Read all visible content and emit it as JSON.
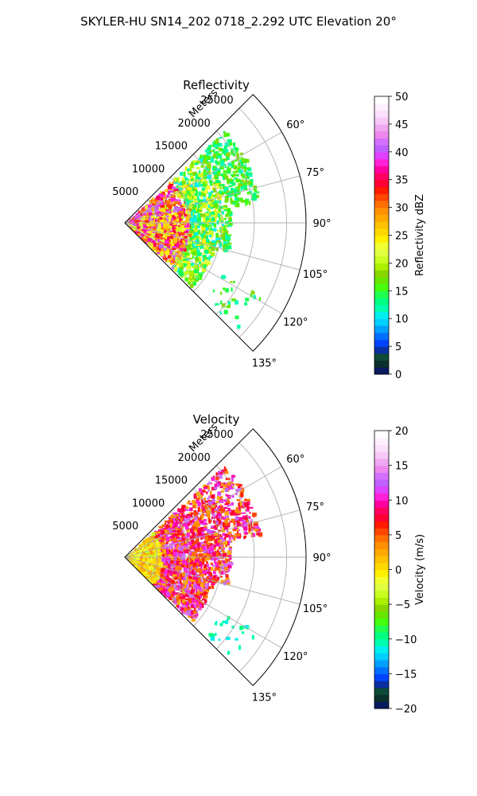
{
  "figure": {
    "title": "SKYLER-HU  SN14_202  0718_2.292 UTC Elevation 20°"
  },
  "chart_data": [
    {
      "type": "heatmap",
      "subtype": "polar-sector radar PPI",
      "title": "Reflectivity",
      "radial_label": "Meters",
      "radial_range": [
        0,
        28000
      ],
      "radial_ticks": [
        5000,
        10000,
        15000,
        20000,
        25000
      ],
      "radial_tick_labels": [
        "5000",
        "10000",
        "15000",
        "20000",
        "25000"
      ],
      "azimuth_range_deg": [
        45,
        135
      ],
      "azimuth_ticks_deg": [
        60,
        75,
        90,
        105,
        120,
        135
      ],
      "azimuth_tick_labels": [
        "60°",
        "75°",
        "90°",
        "105°",
        "120°",
        "135°"
      ],
      "grid": true,
      "colorbar": {
        "label": "Reflectivity dBZ",
        "range": [
          0,
          50
        ],
        "ticks": [
          0,
          5,
          10,
          15,
          20,
          25,
          30,
          35,
          40,
          45,
          50
        ],
        "tick_labels": [
          "0",
          "5",
          "10",
          "15",
          "20",
          "25",
          "30",
          "35",
          "40",
          "45",
          "50"
        ],
        "colors": [
          "#0a1a5e",
          "#0b2f2a",
          "#0e4a38",
          "#0a2fa0",
          "#0044ff",
          "#0070ff",
          "#00a0ff",
          "#00cfff",
          "#00f0f0",
          "#00ffb0",
          "#00ff80",
          "#20ff50",
          "#44ff10",
          "#66e600",
          "#88d800",
          "#aaf000",
          "#c8ff20",
          "#e0ff40",
          "#f0ff30",
          "#ffef00",
          "#ffd800",
          "#ffc000",
          "#ffa800",
          "#ff9000",
          "#ff7000",
          "#ff4500",
          "#ff1a00",
          "#ff0033",
          "#ff0060",
          "#ff00a0",
          "#ff20d8",
          "#e040ff",
          "#c060ff",
          "#d470ff",
          "#ee88f0",
          "#f0a8f0",
          "#f8c8f8",
          "#fce0fc",
          "#fff0ff",
          "#ffffff"
        ]
      }
    },
    {
      "type": "heatmap",
      "subtype": "polar-sector radar PPI",
      "title": "Velocity",
      "radial_label": "Meters",
      "radial_range": [
        0,
        28000
      ],
      "radial_ticks": [
        5000,
        10000,
        15000,
        20000,
        25000
      ],
      "radial_tick_labels": [
        "5000",
        "10000",
        "15000",
        "20000",
        "25000"
      ],
      "azimuth_range_deg": [
        45,
        135
      ],
      "azimuth_ticks_deg": [
        60,
        75,
        90,
        105,
        120,
        135
      ],
      "azimuth_tick_labels": [
        "60°",
        "75°",
        "90°",
        "105°",
        "120°",
        "135°"
      ],
      "grid": true,
      "colorbar": {
        "label": "Velocity (m/s)",
        "range": [
          -20,
          20
        ],
        "ticks": [
          -20,
          -15,
          -10,
          -5,
          0,
          5,
          10,
          15,
          20
        ],
        "tick_labels": [
          "−20",
          "−15",
          "−10",
          "−5",
          "0",
          "5",
          "10",
          "15",
          "20"
        ],
        "colors": [
          "#0a1a5e",
          "#0b2f2a",
          "#0e4a38",
          "#0a2fa0",
          "#0044ff",
          "#0070ff",
          "#00a0ff",
          "#00cfff",
          "#00f0f0",
          "#00ffb0",
          "#00ff80",
          "#20ff50",
          "#44ff10",
          "#66e600",
          "#88d800",
          "#aaf000",
          "#c8ff20",
          "#e0ff40",
          "#f0ff30",
          "#ffef00",
          "#ffd800",
          "#ffc000",
          "#ffa800",
          "#ff9000",
          "#ff7000",
          "#ff4500",
          "#ff1a00",
          "#ff0033",
          "#ff0060",
          "#ff00a0",
          "#ff20d8",
          "#e040ff",
          "#c060ff",
          "#d470ff",
          "#ee88f0",
          "#f0a8f0",
          "#f8c8f8",
          "#fce0fc",
          "#fff0ff",
          "#ffffff"
        ]
      }
    }
  ]
}
